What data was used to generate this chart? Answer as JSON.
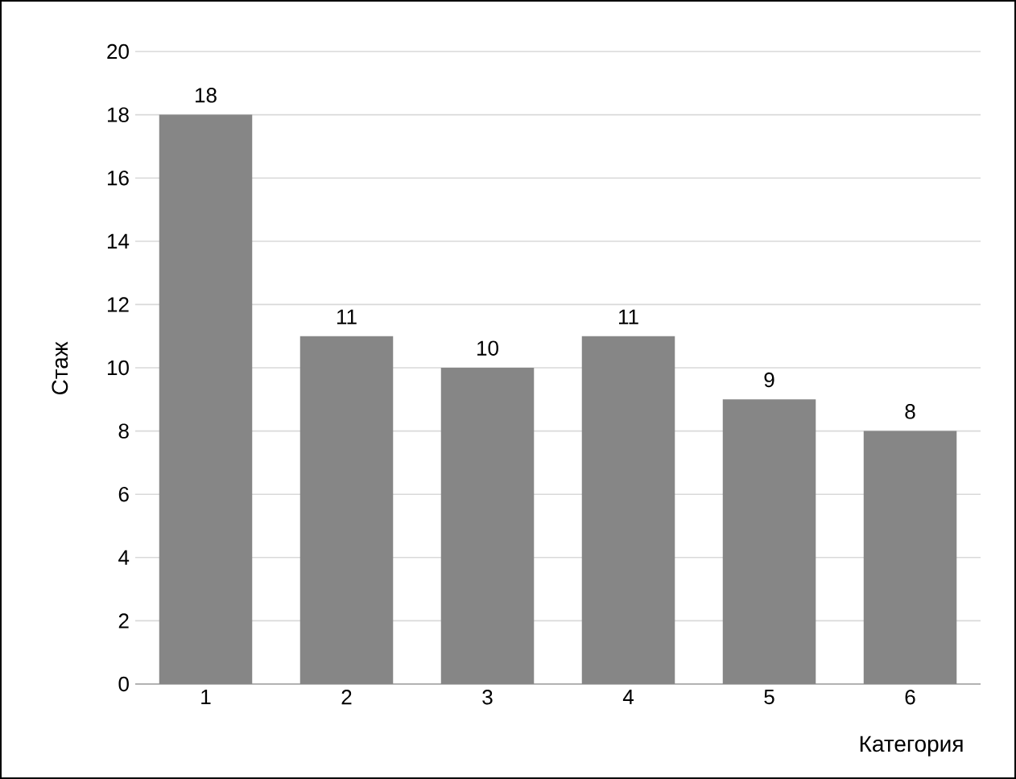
{
  "chart_data": {
    "type": "bar",
    "xlabel": "Категория",
    "ylabel": "Стаж",
    "categories": [
      "1",
      "2",
      "3",
      "4",
      "5",
      "6"
    ],
    "values": [
      18,
      11,
      10,
      11,
      9,
      8
    ],
    "color": "#868686",
    "ylim": [
      0,
      20
    ],
    "yticks": [
      0,
      2,
      4,
      6,
      8,
      10,
      12,
      14,
      16,
      18,
      20
    ],
    "grid": "y",
    "data_labels": true
  }
}
